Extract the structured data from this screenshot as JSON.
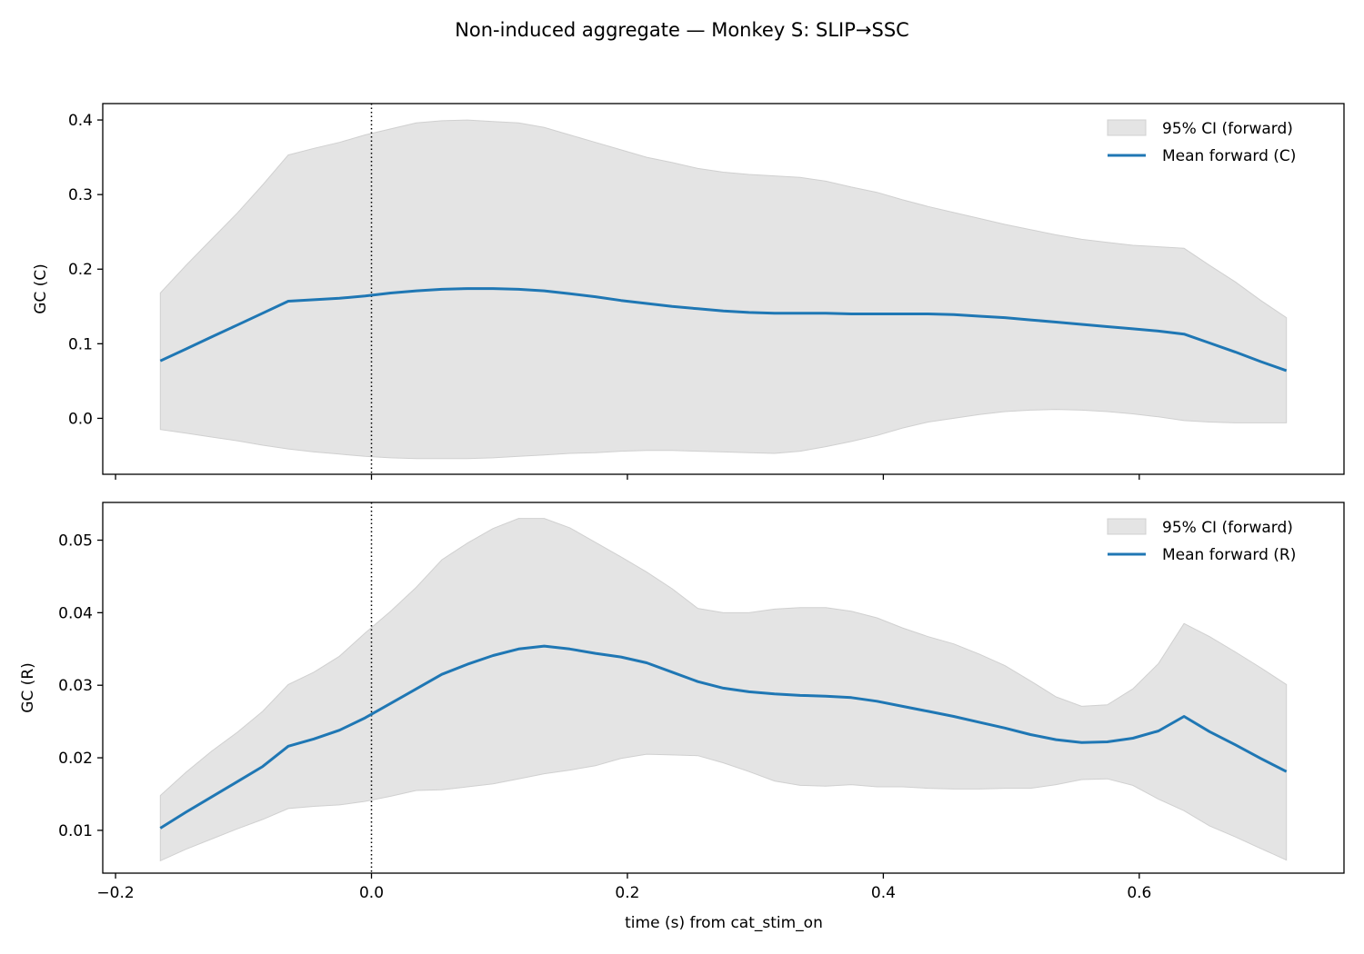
{
  "title": "Non-induced aggregate — Monkey S: SLIP→SSC",
  "xlabel": "time (s) from cat_stim_on",
  "colors": {
    "mean_line": "#1f77b4",
    "ci_fill": "#e4e4e4",
    "ci_edge": "#d0d0d0",
    "vline": "#000000"
  },
  "vline_x": 0.0,
  "x_ticks": [
    -0.2,
    0.0,
    0.2,
    0.4,
    0.6
  ],
  "x_tick_labels": [
    "−0.2",
    "0.0",
    "0.2",
    "0.4",
    "0.6"
  ],
  "chart_data": [
    {
      "type": "line",
      "panel": "top",
      "ylabel": "GC (C)",
      "xlim": [
        -0.21,
        0.76
      ],
      "ylim": [
        -0.075,
        0.422
      ],
      "y_ticks": [
        0.0,
        0.1,
        0.2,
        0.3,
        0.4
      ],
      "y_tick_labels": [
        "0.0",
        "0.1",
        "0.2",
        "0.3",
        "0.4"
      ],
      "legend_position": "top-right",
      "legend": [
        "95% CI (forward)",
        "Mean forward (C)"
      ],
      "x": [
        -0.165,
        -0.145,
        -0.125,
        -0.105,
        -0.085,
        -0.065,
        -0.045,
        -0.025,
        -0.005,
        0.015,
        0.035,
        0.055,
        0.075,
        0.095,
        0.115,
        0.135,
        0.155,
        0.175,
        0.195,
        0.215,
        0.235,
        0.255,
        0.275,
        0.295,
        0.315,
        0.335,
        0.355,
        0.375,
        0.395,
        0.415,
        0.435,
        0.455,
        0.475,
        0.495,
        0.515,
        0.535,
        0.555,
        0.575,
        0.595,
        0.615,
        0.635,
        0.655,
        0.675,
        0.695,
        0.715
      ],
      "series": [
        {
          "name": "Mean forward (C)",
          "values": [
            0.077,
            0.093,
            0.109,
            0.125,
            0.141,
            0.157,
            0.159,
            0.161,
            0.164,
            0.168,
            0.171,
            0.173,
            0.174,
            0.174,
            0.173,
            0.171,
            0.167,
            0.163,
            0.158,
            0.154,
            0.15,
            0.147,
            0.144,
            0.142,
            0.141,
            0.141,
            0.141,
            0.14,
            0.14,
            0.14,
            0.14,
            0.139,
            0.137,
            0.135,
            0.132,
            0.129,
            0.126,
            0.123,
            0.12,
            0.117,
            0.113,
            0.101,
            0.089,
            0.076,
            0.064
          ],
          "ci_lower": [
            -0.015,
            -0.02,
            -0.025,
            -0.03,
            -0.036,
            -0.041,
            -0.045,
            -0.048,
            -0.051,
            -0.053,
            -0.054,
            -0.054,
            -0.054,
            -0.053,
            -0.051,
            -0.049,
            -0.047,
            -0.046,
            -0.044,
            -0.043,
            -0.043,
            -0.044,
            -0.045,
            -0.046,
            -0.047,
            -0.044,
            -0.038,
            -0.031,
            -0.023,
            -0.013,
            -0.005,
            0.0,
            0.005,
            0.009,
            0.011,
            0.012,
            0.011,
            0.009,
            0.006,
            0.002,
            -0.003,
            -0.005,
            -0.006,
            -0.006,
            -0.006
          ],
          "ci_upper": [
            0.168,
            0.205,
            0.24,
            0.275,
            0.313,
            0.353,
            0.362,
            0.37,
            0.38,
            0.388,
            0.396,
            0.399,
            0.4,
            0.398,
            0.396,
            0.39,
            0.38,
            0.37,
            0.36,
            0.35,
            0.343,
            0.335,
            0.33,
            0.327,
            0.325,
            0.323,
            0.318,
            0.31,
            0.303,
            0.293,
            0.284,
            0.276,
            0.268,
            0.26,
            0.253,
            0.246,
            0.24,
            0.236,
            0.232,
            0.23,
            0.228,
            0.205,
            0.183,
            0.158,
            0.135
          ]
        }
      ]
    },
    {
      "type": "line",
      "panel": "bottom",
      "ylabel": "GC (R)",
      "xlim": [
        -0.21,
        0.76
      ],
      "ylim": [
        0.0041,
        0.0552
      ],
      "y_ticks": [
        0.01,
        0.02,
        0.03,
        0.04,
        0.05
      ],
      "y_tick_labels": [
        "0.01",
        "0.02",
        "0.03",
        "0.04",
        "0.05"
      ],
      "legend_position": "top-right",
      "legend": [
        "95% CI (forward)",
        "Mean forward (R)"
      ],
      "x": [
        -0.165,
        -0.145,
        -0.125,
        -0.105,
        -0.085,
        -0.065,
        -0.045,
        -0.025,
        -0.005,
        0.015,
        0.035,
        0.055,
        0.075,
        0.095,
        0.115,
        0.135,
        0.155,
        0.175,
        0.195,
        0.215,
        0.235,
        0.255,
        0.275,
        0.295,
        0.315,
        0.335,
        0.355,
        0.375,
        0.395,
        0.415,
        0.435,
        0.455,
        0.475,
        0.495,
        0.515,
        0.535,
        0.555,
        0.575,
        0.595,
        0.615,
        0.635,
        0.655,
        0.675,
        0.695,
        0.715
      ],
      "series": [
        {
          "name": "Mean forward (R)",
          "values": [
            0.0103,
            0.0125,
            0.0146,
            0.0167,
            0.0188,
            0.0216,
            0.0226,
            0.0238,
            0.0255,
            0.0275,
            0.0295,
            0.0315,
            0.0329,
            0.0341,
            0.035,
            0.0354,
            0.035,
            0.0344,
            0.0339,
            0.0331,
            0.0318,
            0.0305,
            0.0296,
            0.0291,
            0.0288,
            0.0286,
            0.0285,
            0.0283,
            0.0278,
            0.0271,
            0.0264,
            0.0257,
            0.0249,
            0.0241,
            0.0232,
            0.0225,
            0.0221,
            0.0222,
            0.0227,
            0.0237,
            0.0257,
            0.0236,
            0.0218,
            0.0199,
            0.0181
          ],
          "ci_lower": [
            0.0058,
            0.0074,
            0.0088,
            0.0102,
            0.0115,
            0.013,
            0.0133,
            0.0135,
            0.014,
            0.0147,
            0.0155,
            0.0156,
            0.016,
            0.0164,
            0.0171,
            0.0178,
            0.0183,
            0.0189,
            0.0199,
            0.0205,
            0.0204,
            0.0203,
            0.0193,
            0.0181,
            0.0168,
            0.0162,
            0.0161,
            0.0163,
            0.016,
            0.016,
            0.0158,
            0.0157,
            0.0157,
            0.0158,
            0.0158,
            0.0163,
            0.017,
            0.0171,
            0.0162,
            0.0143,
            0.0127,
            0.0106,
            0.0091,
            0.0075,
            0.0059
          ],
          "ci_upper": [
            0.0148,
            0.018,
            0.0209,
            0.0235,
            0.0264,
            0.0301,
            0.0318,
            0.034,
            0.0372,
            0.0402,
            0.0435,
            0.0473,
            0.0496,
            0.0516,
            0.053,
            0.053,
            0.0517,
            0.0497,
            0.0477,
            0.0456,
            0.0433,
            0.0406,
            0.04,
            0.04,
            0.0405,
            0.0407,
            0.0407,
            0.0402,
            0.0393,
            0.0379,
            0.0367,
            0.0357,
            0.0343,
            0.0327,
            0.0306,
            0.0284,
            0.0271,
            0.0273,
            0.0295,
            0.033,
            0.0385,
            0.0367,
            0.0346,
            0.0324,
            0.0301
          ]
        }
      ]
    }
  ]
}
